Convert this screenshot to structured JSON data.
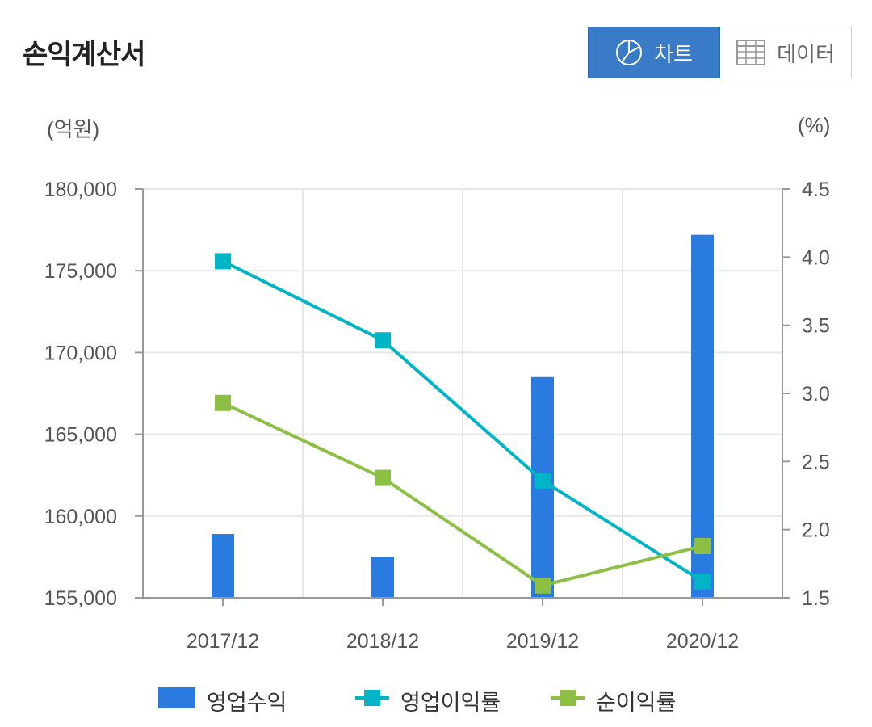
{
  "header": {
    "title": "손익계산서",
    "chart_button": "차트",
    "data_button": "데이터"
  },
  "units": {
    "left": "(억원)",
    "right": "(%)"
  },
  "colors": {
    "bar": "#2a7be0",
    "operating_margin": "#00b4c8",
    "net_margin": "#8cbf44",
    "active_button": "#3a7bc8"
  },
  "legend": [
    {
      "label": "영업수익",
      "icon": "bar-swatch"
    },
    {
      "label": "영업이익률",
      "icon": "line-marker-swatch"
    },
    {
      "label": "순이익률",
      "icon": "line-marker-swatch"
    }
  ],
  "chart_data": {
    "type": "bar+line",
    "categories": [
      "2017/12",
      "2018/12",
      "2019/12",
      "2020/12"
    ],
    "left_axis": {
      "ylim": [
        155000,
        180000
      ],
      "ticks": [
        "155,000",
        "160,000",
        "165,000",
        "170,000",
        "175,000",
        "180,000"
      ],
      "tick_values": [
        155000,
        160000,
        165000,
        170000,
        175000,
        180000
      ]
    },
    "right_axis": {
      "ylim": [
        1.5,
        4.5
      ],
      "ticks": [
        "1.5",
        "2.0",
        "2.5",
        "3.0",
        "3.5",
        "4.0",
        "4.5"
      ],
      "tick_values": [
        1.5,
        2.0,
        2.5,
        3.0,
        3.5,
        4.0,
        4.5
      ]
    },
    "series": [
      {
        "name": "영업수익",
        "type": "bar",
        "axis": "left",
        "values": [
          158900,
          157500,
          168500,
          177200
        ]
      },
      {
        "name": "영업이익률",
        "type": "line",
        "axis": "right",
        "values": [
          3.97,
          3.39,
          2.36,
          1.62
        ]
      },
      {
        "name": "순이익률",
        "type": "line",
        "axis": "right",
        "values": [
          2.93,
          2.38,
          1.59,
          1.88
        ]
      }
    ],
    "grid": true,
    "legend_position": "bottom"
  }
}
